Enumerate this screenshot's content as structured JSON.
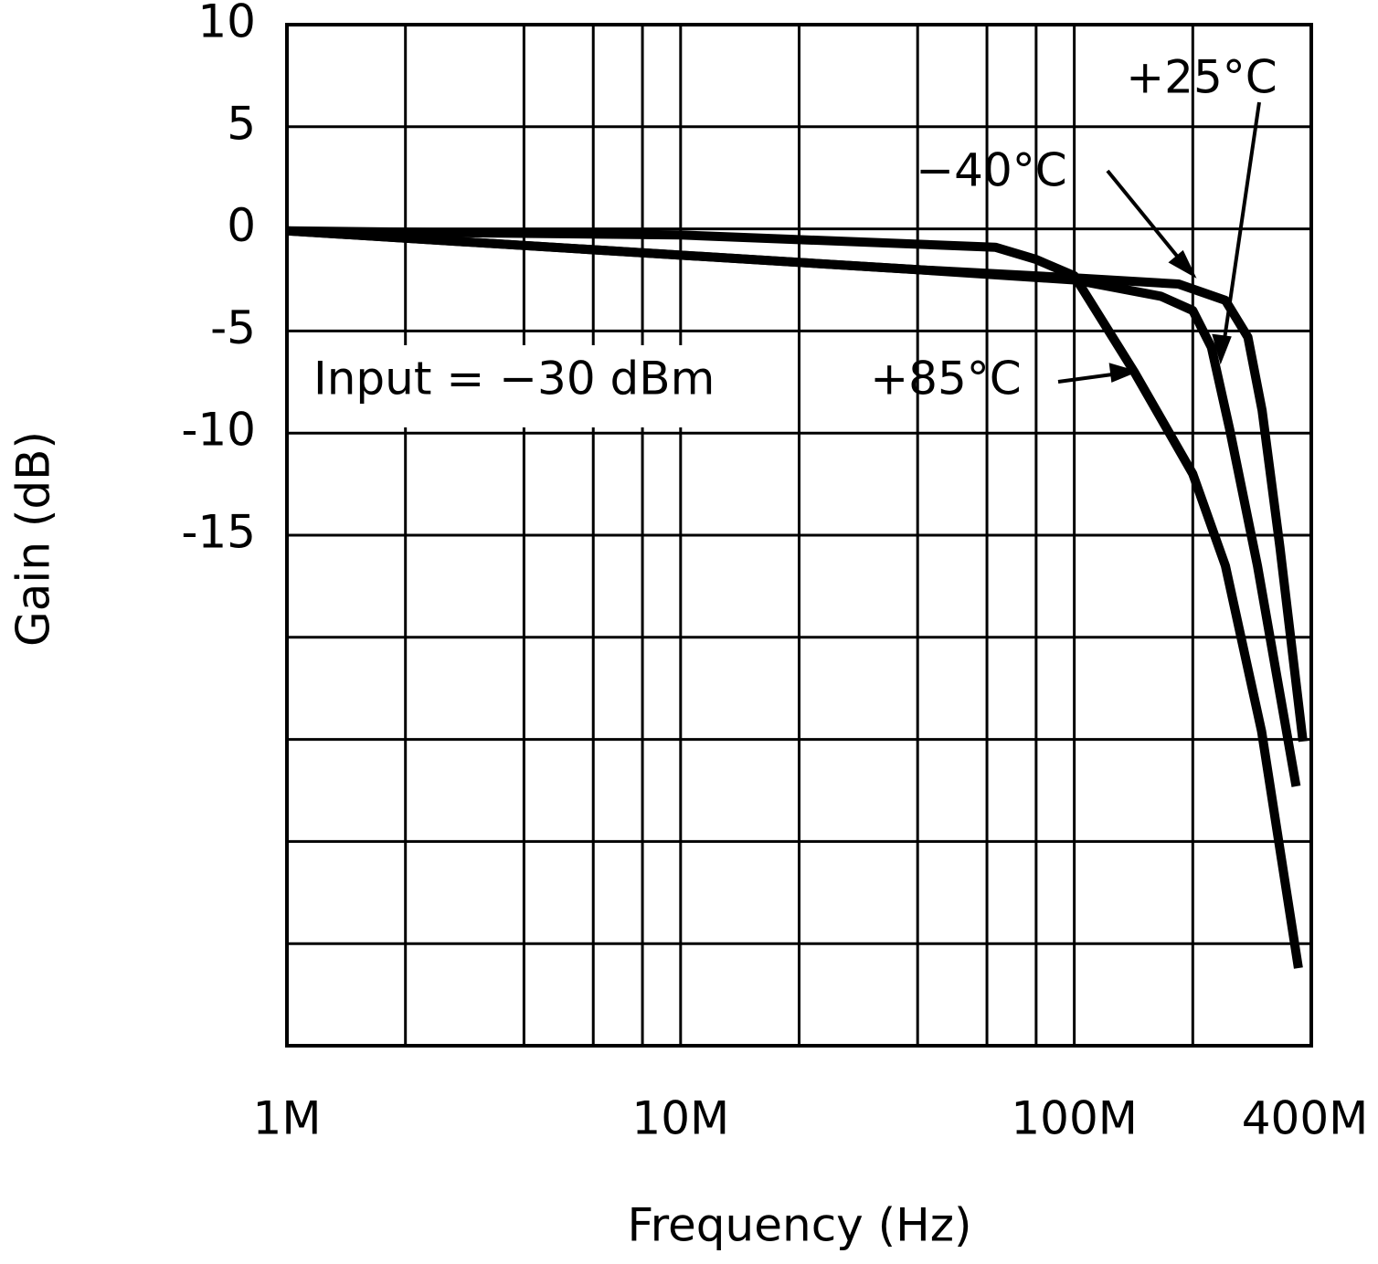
{
  "chart_data": {
    "type": "line",
    "xlabel": "Frequency (Hz)",
    "ylabel": "Gain (dB)",
    "annotation": "Input = −30 dBm",
    "xscale": "log",
    "xlim": [
      1000000,
      400000000
    ],
    "xticks": [
      {
        "value": 1000000,
        "label": "1M"
      },
      {
        "value": 10000000,
        "label": "10M"
      },
      {
        "value": 100000000,
        "label": "100M"
      },
      {
        "value": 400000000,
        "label": "400M"
      }
    ],
    "xgrid": [
      2000000,
      4000000,
      6000000,
      8000000,
      10000000,
      20000000,
      40000000,
      60000000,
      80000000,
      100000000,
      200000000
    ],
    "ylim": [
      -40,
      10
    ],
    "yticks": [
      10,
      5,
      0,
      -5,
      -10,
      -15
    ],
    "ygrid": [
      5,
      0,
      -5,
      -10,
      -15,
      -20,
      -25,
      -30,
      -35
    ],
    "grid": true,
    "series": [
      {
        "name": "+25°C",
        "color": "#000000",
        "x": [
          1000000,
          40000000,
          100000000,
          166000000,
          200000000,
          223000000,
          248000000,
          292000000,
          366000000
        ],
        "values": [
          -0.1,
          -2.0,
          -2.5,
          -3.3,
          -4.0,
          -5.8,
          -9.8,
          -16.5,
          -27.3
        ]
      },
      {
        "name": "−40°C",
        "color": "#000000",
        "x": [
          1000000,
          40000000,
          100000000,
          184000000,
          242000000,
          276000000,
          300000000,
          333000000,
          381000000
        ],
        "values": [
          -0.1,
          -2.0,
          -2.4,
          -2.7,
          -3.5,
          -5.3,
          -8.9,
          -15.6,
          -25.1
        ]
      },
      {
        "name": "+85°C",
        "color": "#000000",
        "x": [
          1000000,
          10000000,
          63000000,
          80000000,
          100000000,
          142000000,
          200000000,
          242000000,
          299000000,
          371000000
        ],
        "values": [
          -0.1,
          -0.3,
          -0.9,
          -1.5,
          -2.3,
          -7.0,
          -12.0,
          -16.5,
          -24.6,
          -36.2
        ]
      }
    ]
  }
}
